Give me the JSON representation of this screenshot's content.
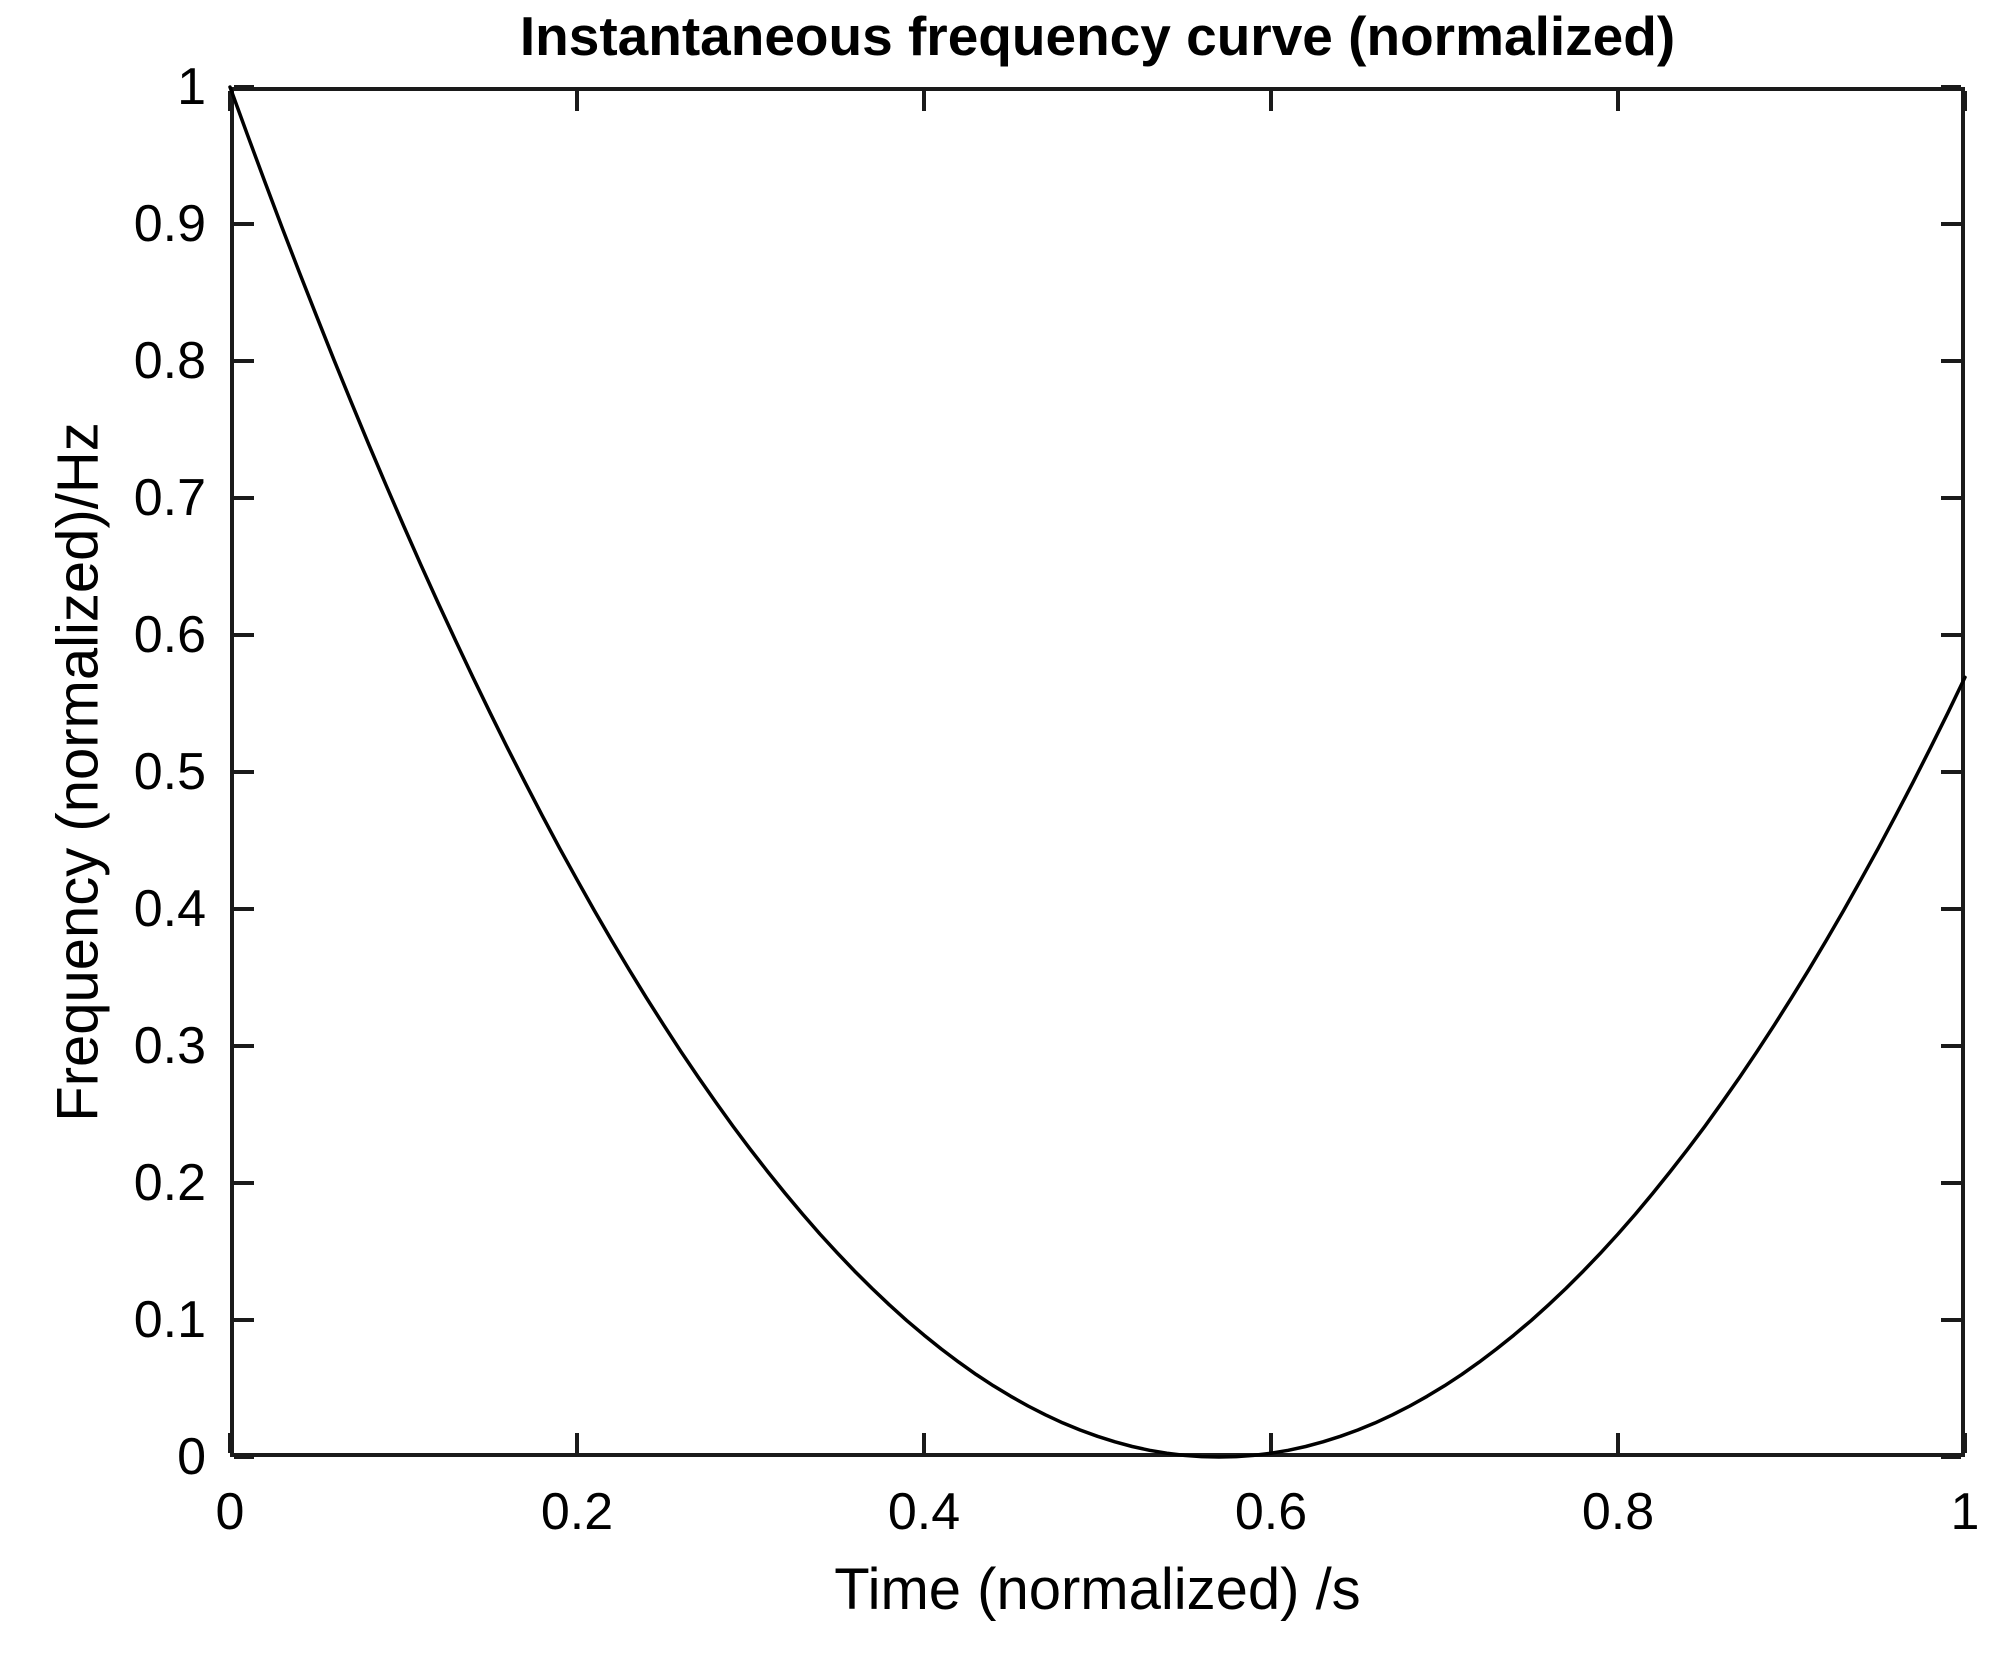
{
  "figure": {
    "background_color": "#ffffff",
    "text_color": "#000000",
    "axis_color": "#1a1a1a",
    "curve_color": "#000000"
  },
  "chart_data": {
    "type": "line",
    "title": "Instantaneous frequency curve (normalized)",
    "xlabel": "Time (normalized) /s",
    "ylabel": "Frequency (normalized)/Hz",
    "xlim": [
      0,
      1
    ],
    "ylim": [
      0,
      1
    ],
    "x_ticks": [
      0,
      0.2,
      0.4,
      0.6,
      0.8,
      1
    ],
    "x_tick_labels": [
      "0",
      "0.2",
      "0.4",
      "0.6",
      "0.8",
      "1"
    ],
    "y_ticks": [
      0,
      0.1,
      0.2,
      0.3,
      0.4,
      0.5,
      0.6,
      0.7,
      0.8,
      0.9,
      1
    ],
    "y_tick_labels": [
      "0",
      "0.1",
      "0.2",
      "0.3",
      "0.4",
      "0.5",
      "0.6",
      "0.7",
      "0.8",
      "0.9",
      "1"
    ],
    "grid": false,
    "legend": "none",
    "box": true,
    "tick_direction": "in",
    "curve_minimum": {
      "x": 0.57,
      "y": 0
    },
    "endpoints": {
      "start": [
        0,
        1
      ],
      "end": [
        1,
        0.5691
      ]
    },
    "x": [
      0,
      0.01,
      0.02,
      0.03,
      0.04,
      0.05,
      0.06,
      0.07,
      0.08,
      0.09,
      0.1,
      0.11,
      0.12,
      0.13,
      0.14,
      0.15,
      0.16,
      0.17,
      0.18,
      0.19,
      0.2,
      0.21,
      0.22,
      0.23,
      0.24,
      0.25,
      0.26,
      0.27,
      0.28,
      0.29,
      0.3,
      0.31,
      0.32,
      0.33,
      0.34,
      0.35,
      0.36,
      0.37,
      0.38,
      0.39,
      0.4,
      0.41,
      0.42,
      0.43,
      0.44,
      0.45,
      0.46,
      0.47,
      0.48,
      0.49,
      0.5,
      0.51,
      0.52,
      0.53,
      0.54,
      0.55,
      0.56,
      0.57,
      0.58,
      0.59,
      0.6,
      0.61,
      0.62,
      0.63,
      0.64,
      0.65,
      0.66,
      0.67,
      0.68,
      0.69,
      0.7,
      0.71,
      0.72,
      0.73,
      0.74,
      0.75,
      0.76,
      0.77,
      0.78,
      0.79,
      0.8,
      0.81,
      0.82,
      0.83,
      0.84,
      0.85,
      0.86,
      0.87,
      0.88,
      0.89,
      0.9,
      0.91,
      0.92,
      0.93,
      0.94,
      0.95,
      0.96,
      0.97,
      0.98,
      0.99,
      1
    ],
    "y": [
      1,
      0.9652,
      0.9311,
      0.8975,
      0.8646,
      0.8323,
      0.8006,
      0.7695,
      0.739,
      0.7091,
      0.6799,
      0.6513,
      0.6233,
      0.5959,
      0.5691,
      0.5429,
      0.5174,
      0.4925,
      0.4681,
      0.4444,
      0.4214,
      0.3989,
      0.377,
      0.3558,
      0.3352,
      0.3152,
      0.2958,
      0.277,
      0.2589,
      0.2413,
      0.2244,
      0.2081,
      0.1924,
      0.1773,
      0.1628,
      0.149,
      0.1357,
      0.1231,
      0.1111,
      0.0997,
      0.089,
      0.0788,
      0.0693,
      0.0603,
      0.052,
      0.0443,
      0.0372,
      0.0308,
      0.0249,
      0.0197,
      0.0151,
      0.0111,
      0.0077,
      0.0049,
      0.0028,
      0.0012,
      0.0003,
      0,
      0.0003,
      0.0012,
      0.0028,
      0.0049,
      0.0077,
      0.0111,
      0.0151,
      0.0197,
      0.0249,
      0.0308,
      0.0372,
      0.0443,
      0.052,
      0.0603,
      0.0693,
      0.0788,
      0.089,
      0.0997,
      0.1111,
      0.1231,
      0.1357,
      0.149,
      0.1628,
      0.1773,
      0.1924,
      0.2081,
      0.2244,
      0.2413,
      0.2589,
      0.277,
      0.2958,
      0.3152,
      0.3352,
      0.3558,
      0.377,
      0.3989,
      0.4214,
      0.4444,
      0.4681,
      0.4925,
      0.5174,
      0.5429,
      0.5691
    ]
  }
}
